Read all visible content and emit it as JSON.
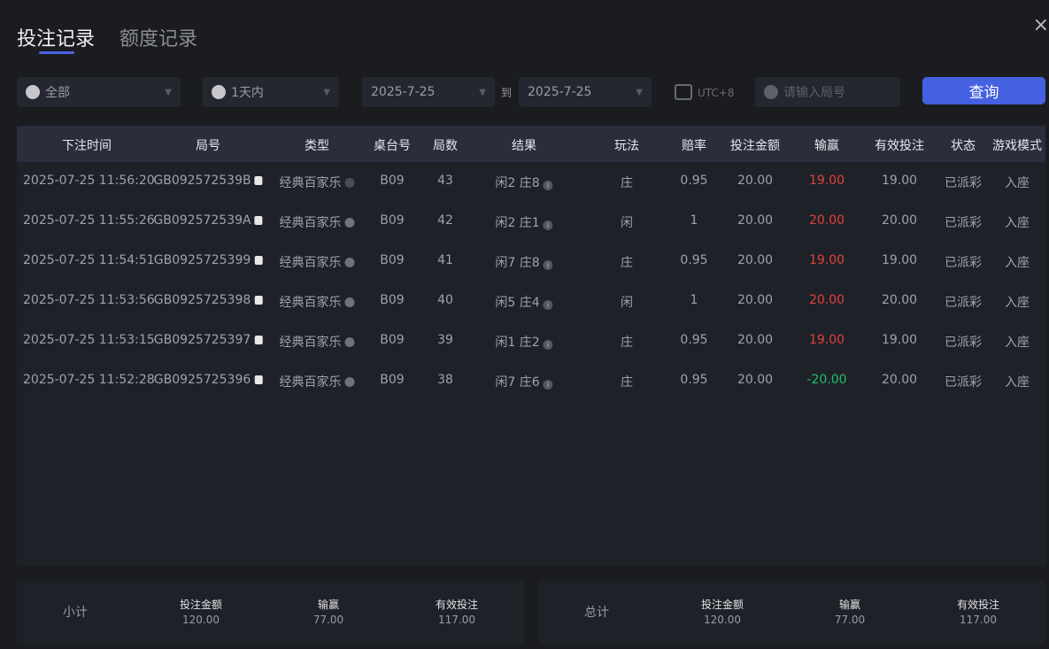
{
  "tabs": [
    "投注记录",
    "额度记录"
  ],
  "close_icon": "×",
  "filters": {
    "game": "全部",
    "period": "1天内",
    "date_from": "2025-7-25",
    "to_label": "到",
    "date_to": "2025-7-25",
    "timezone": "UTC+8",
    "round_placeholder": "请输入局号",
    "query_label": "查询"
  },
  "columns": [
    "下注时间",
    "局号",
    "类型",
    "桌台号",
    "局数",
    "结果",
    "玩法",
    "赔率",
    "投注金额",
    "输赢",
    "有效投注",
    "状态",
    "游戏模式"
  ],
  "rows": [
    [
      "2025-07-25 11:56:20",
      "GB092572539B",
      "经典百家乐",
      "B09",
      "43",
      "闲2 庄8",
      "庄",
      "0.95",
      "20.00",
      "19.00",
      "19.00",
      "已派彩",
      "入座"
    ],
    [
      "2025-07-25 11:55:26",
      "GB092572539A",
      "经典百家乐",
      "B09",
      "42",
      "闲2 庄1",
      "闲",
      "1",
      "20.00",
      "20.00",
      "20.00",
      "已派彩",
      "入座"
    ],
    [
      "2025-07-25 11:54:51",
      "GB0925725399",
      "经典百家乐",
      "B09",
      "41",
      "闲7 庄8",
      "庄",
      "0.95",
      "20.00",
      "19.00",
      "19.00",
      "已派彩",
      "入座"
    ],
    [
      "2025-07-25 11:53:56",
      "GB0925725398",
      "经典百家乐",
      "B09",
      "40",
      "闲5 庄4",
      "闲",
      "1",
      "20.00",
      "20.00",
      "20.00",
      "已派彩",
      "入座"
    ],
    [
      "2025-07-25 11:53:15",
      "GB0925725397",
      "经典百家乐",
      "B09",
      "39",
      "闲1 庄2",
      "庄",
      "0.95",
      "20.00",
      "19.00",
      "19.00",
      "已派彩",
      "入座"
    ],
    [
      "2025-07-25 11:52:28",
      "GB0925725396",
      "经典百家乐",
      "B09",
      "38",
      "闲7 庄6",
      "庄",
      "0.95",
      "20.00",
      "-20.00",
      "20.00",
      "已派彩",
      "入座"
    ]
  ],
  "subtotal": {
    "label": "小计",
    "bet_label": "投注金额",
    "bet": "120.00",
    "win_label": "输赢",
    "win": "77.00",
    "valid_label": "有效投注",
    "valid": "117.00"
  },
  "total": {
    "label": "总计",
    "bet_label": "投注金额",
    "bet": "120.00",
    "win_label": "输赢",
    "win": "77.00",
    "valid_label": "有效投注",
    "valid": "117.00"
  },
  "colors": {
    "accent": "#4560e0",
    "win": "#e0423e",
    "loss": "#1fc26a"
  }
}
